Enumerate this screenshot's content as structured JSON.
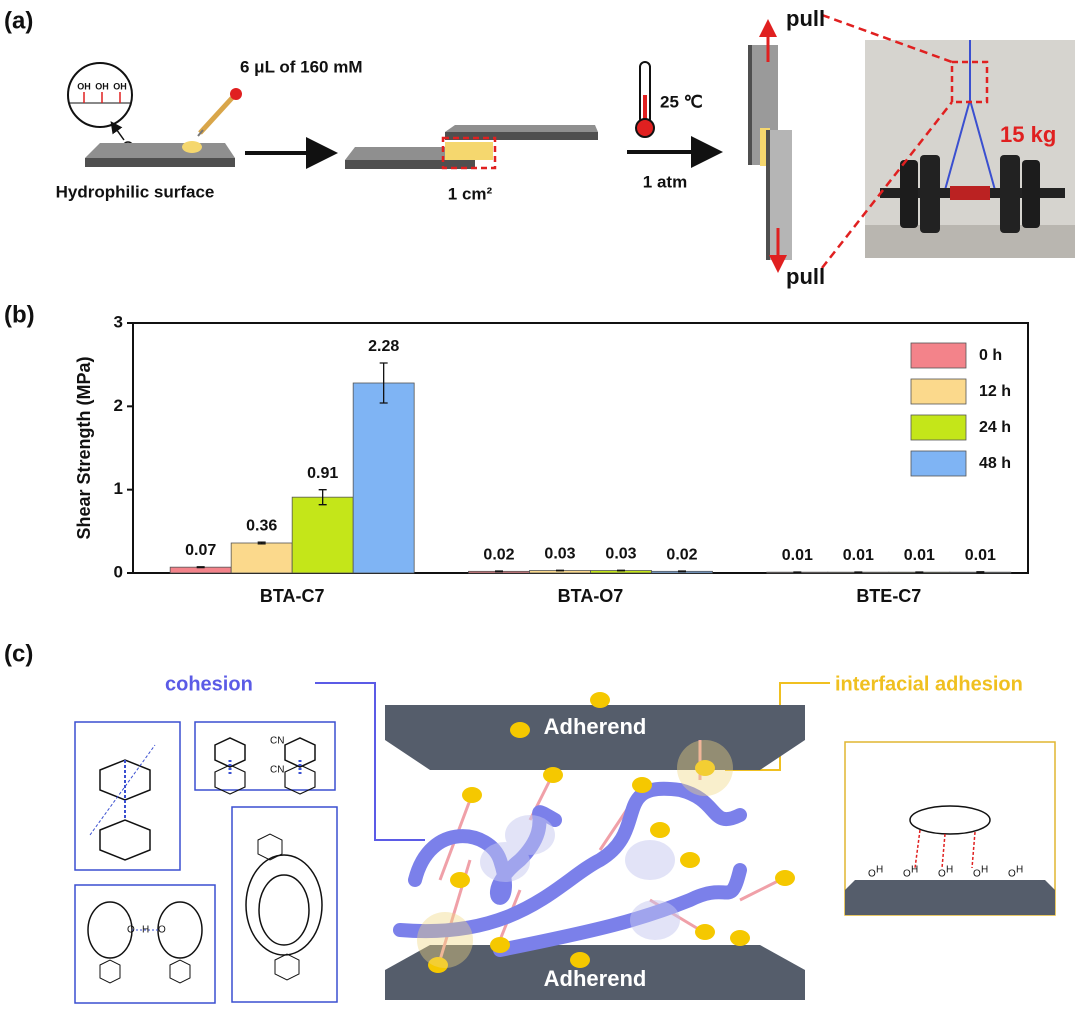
{
  "panel_a": {
    "label": "(a)",
    "oh_labels": [
      "OH",
      "OH",
      "OH"
    ],
    "droplet": "6 μL of 160 mM",
    "surface": "Hydrophilic surface",
    "area": "1 cm²",
    "temperature": "25 ℃",
    "pressure": "1 atm",
    "pull_top": "pull",
    "pull_bottom": "pull",
    "load": "15 kg"
  },
  "panel_b": {
    "label": "(b)"
  },
  "chart_data": {
    "type": "bar",
    "ylabel": "Shear Strength (MPa)",
    "categories": [
      "BTA-C7",
      "BTA-O7",
      "BTE-C7"
    ],
    "series": [
      {
        "name": "0 h",
        "color": "#f3838a",
        "values": [
          0.07,
          0.02,
          0.01
        ],
        "errors": [
          0.005,
          0.003,
          0.002
        ]
      },
      {
        "name": "12 h",
        "color": "#fbd98c",
        "values": [
          0.36,
          0.03,
          0.01
        ],
        "errors": [
          0.01,
          0.003,
          0.002
        ]
      },
      {
        "name": "24 h",
        "color": "#c4e619",
        "values": [
          0.91,
          0.03,
          0.01
        ],
        "errors": [
          0.09,
          0.003,
          0.002
        ]
      },
      {
        "name": "48 h",
        "color": "#7fb4f4",
        "values": [
          2.28,
          0.02,
          0.01
        ],
        "errors": [
          0.24,
          0.003,
          0.005
        ]
      }
    ],
    "ylim": [
      0,
      3
    ],
    "yticks": [
      0,
      1,
      2,
      3
    ],
    "legend": "top-right"
  },
  "panel_c": {
    "label": "(c)",
    "cohesion": "cohesion",
    "adhesion": "interfacial adhesion",
    "adherend_top": "Adherend",
    "adherend_bottom": "Adherend",
    "stacking_labels": [
      "CN",
      "CN"
    ],
    "hbond_labels": [
      "O",
      "H",
      "O"
    ],
    "surface_labels": [
      "O",
      "H",
      "O",
      "H",
      "O",
      "H",
      "O",
      "H",
      "O",
      "H"
    ]
  }
}
